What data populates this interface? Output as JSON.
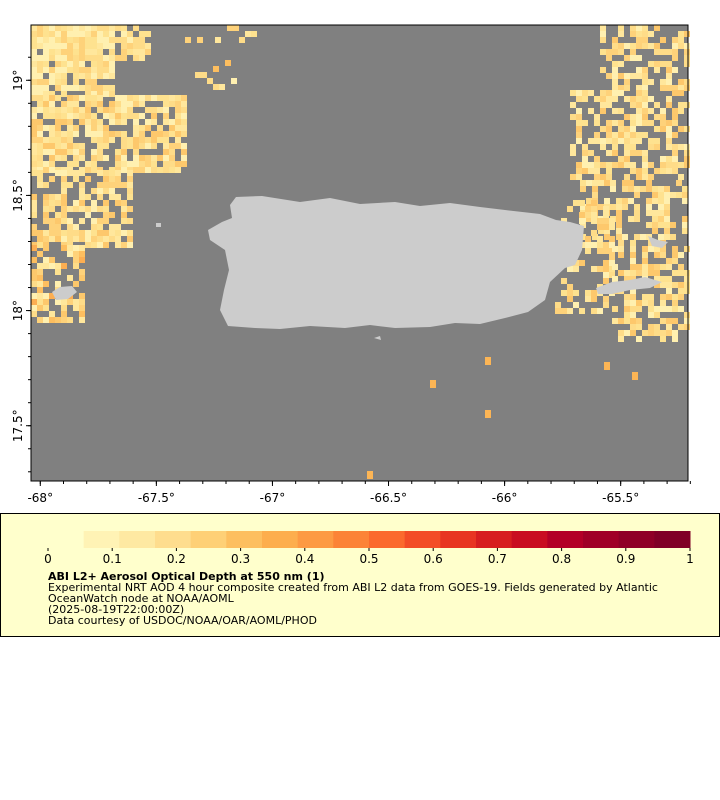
{
  "map": {
    "x_ticks": [
      {
        "lon": -68,
        "label": "-68°"
      },
      {
        "lon": -67.5,
        "label": "-67.5°"
      },
      {
        "lon": -67,
        "label": "-67°"
      },
      {
        "lon": -66.5,
        "label": "-66.5°"
      },
      {
        "lon": -66,
        "label": "-66°"
      },
      {
        "lon": -65.5,
        "label": "-65.5°"
      }
    ],
    "y_ticks": [
      {
        "lat": 19,
        "label": "19°"
      },
      {
        "lat": 18.5,
        "label": "18.5°"
      },
      {
        "lat": 18,
        "label": "18°"
      },
      {
        "lat": 17.5,
        "label": "17.5°"
      }
    ],
    "lon_range": [
      -68.04,
      -65.21
    ],
    "lat_range": [
      17.26,
      19.24
    ],
    "ocean_color": "#808080",
    "land_color": "#cccccc"
  },
  "legend": {
    "colorbar_labels": [
      "0",
      "0.1",
      "0.2",
      "0.3",
      "0.4",
      "0.5",
      "0.6",
      "0.7",
      "0.8",
      "0.9",
      "1"
    ],
    "colors": [
      "#ffffcc",
      "#fff3b5",
      "#fee9a2",
      "#fedd8e",
      "#fed076",
      "#fdbf5f",
      "#fdae4d",
      "#fd9a43",
      "#fc8337",
      "#fb6a2d",
      "#f34d26",
      "#e83521",
      "#d71e1f",
      "#c90d21",
      "#b30026",
      "#a00026",
      "#8f0026",
      "#800026"
    ],
    "title": "ABI L2+ Aerosol Optical Depth at 550 nm (1)",
    "lines": [
      "Experimental NRT AOD 4 hour composite created from ABI L2 data from GOES-19. Fields generated by Atlantic",
      "OceanWatch node at NOAA/AOML",
      "(2025-08-19T22:00:00Z)",
      "Data courtesy of USDOC/NOAA/OAR/AOML/PHOD"
    ]
  }
}
